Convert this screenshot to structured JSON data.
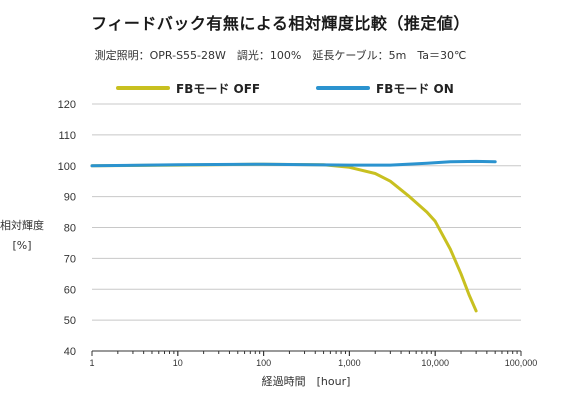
{
  "chart_data": {
    "type": "line",
    "title": "フィードバック有無による相対輝度比較（推定値）",
    "subtitle": "測定照明：OPR-S55-28W　調光：100%　延長ケーブル：5m　Ta＝30℃",
    "ylabel": "相対輝度",
    "ylabel_unit": "[%]",
    "xlabel": "経過時間　[hour]",
    "x_scale": "log",
    "xlim": [
      1,
      100000
    ],
    "ylim": [
      40,
      120
    ],
    "y_ticks": [
      "120",
      "110",
      "100",
      "90",
      "80",
      "70",
      "60",
      "50",
      "40"
    ],
    "x_ticks": [
      "1",
      "10",
      "100",
      "1,000",
      "10,000",
      "100,000"
    ],
    "grid": true,
    "legend_position": "top",
    "series": [
      {
        "name": "FBモード OFF",
        "color": "#c8c020",
        "x": [
          1,
          10,
          100,
          500,
          1000,
          2000,
          3000,
          5000,
          8000,
          10000,
          15000,
          20000,
          25000,
          30000
        ],
        "y": [
          100,
          100.2,
          100.5,
          100.3,
          99.5,
          97.5,
          95,
          90,
          85,
          82,
          73,
          65,
          58,
          53
        ]
      },
      {
        "name": "FBモード ON",
        "color": "#2b93cf",
        "x": [
          1,
          10,
          100,
          1000,
          3000,
          8000,
          15000,
          30000,
          50000
        ],
        "y": [
          100,
          100.3,
          100.5,
          100.2,
          100.2,
          100.8,
          101.3,
          101.4,
          101.3
        ]
      }
    ]
  }
}
